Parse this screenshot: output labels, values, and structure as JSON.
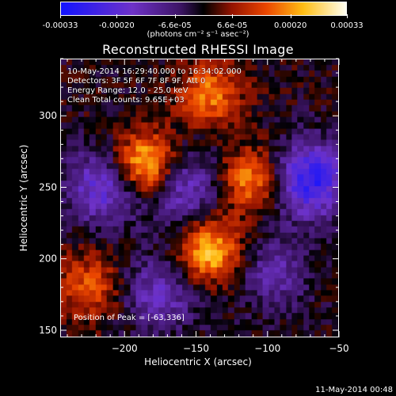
{
  "colorbar": {
    "ticks": [
      {
        "value": -0.00033,
        "label": "-0.00033"
      },
      {
        "value": -0.0002,
        "label": "-0.00020"
      },
      {
        "value": -6.6e-05,
        "label": "-6.6e-05"
      },
      {
        "value": 6.6e-05,
        "label": "6.6e-05"
      },
      {
        "value": 0.0002,
        "label": "0.00020"
      },
      {
        "value": 0.00033,
        "label": "0.00033"
      }
    ],
    "range": [
      -0.00033,
      0.00033
    ],
    "unit": "(photons cm⁻² s⁻¹ asec⁻²)"
  },
  "title": "Reconstructed RHESSI Image",
  "info_lines": [
    "10-May-2014 16:29:40.000 to 16:34:02.000",
    "Detectors: 3F 5F 6F 7F 8F 9F, Att 0",
    "Energy Range: 12.0 - 25.0 keV",
    "Clean     Total counts: 9.65E+03"
  ],
  "peak_text": "Position of Peak = [-63,336]",
  "footer_date": "11-May-2014 00:48",
  "chart_data": {
    "type": "heatmap",
    "title": "Reconstructed RHESSI Image",
    "xlabel": "Heliocentric X (arcsec)",
    "ylabel": "Heliocentric Y (arcsec)",
    "xlim": [
      -245,
      -50
    ],
    "ylim": [
      145,
      340
    ],
    "x_ticks": [
      -200,
      -150,
      -100,
      -50
    ],
    "y_ticks": [
      150,
      200,
      250,
      300
    ],
    "colorscale": "red-temperature (blue-purple negative, black near zero, red-yellow-white positive)",
    "sources": [
      {
        "x": -185,
        "y": 265,
        "value": 0.0003,
        "description": "bright yellow-white blob"
      },
      {
        "x": -110,
        "y": 255,
        "value": 0.0002,
        "description": "orange arc structure"
      },
      {
        "x": -140,
        "y": 205,
        "value": 0.00025,
        "description": "bright lower arc"
      },
      {
        "x": -140,
        "y": 315,
        "value": 0.00018,
        "description": "upper orange region"
      },
      {
        "x": -225,
        "y": 180,
        "value": 0.00015,
        "description": "lower-left yellow patch"
      }
    ],
    "negative_regions": [
      {
        "x": -215,
        "y": 250,
        "value": -0.0002
      },
      {
        "x": -160,
        "y": 250,
        "value": -0.00018
      },
      {
        "x": -70,
        "y": 255,
        "value": -0.00028
      },
      {
        "x": -175,
        "y": 175,
        "value": -0.00015
      },
      {
        "x": -95,
        "y": 190,
        "value": -0.00012
      }
    ]
  },
  "labels": {
    "xlabel": "Heliocentric X (arcsec)",
    "ylabel": "Heliocentric Y (arcsec)"
  }
}
